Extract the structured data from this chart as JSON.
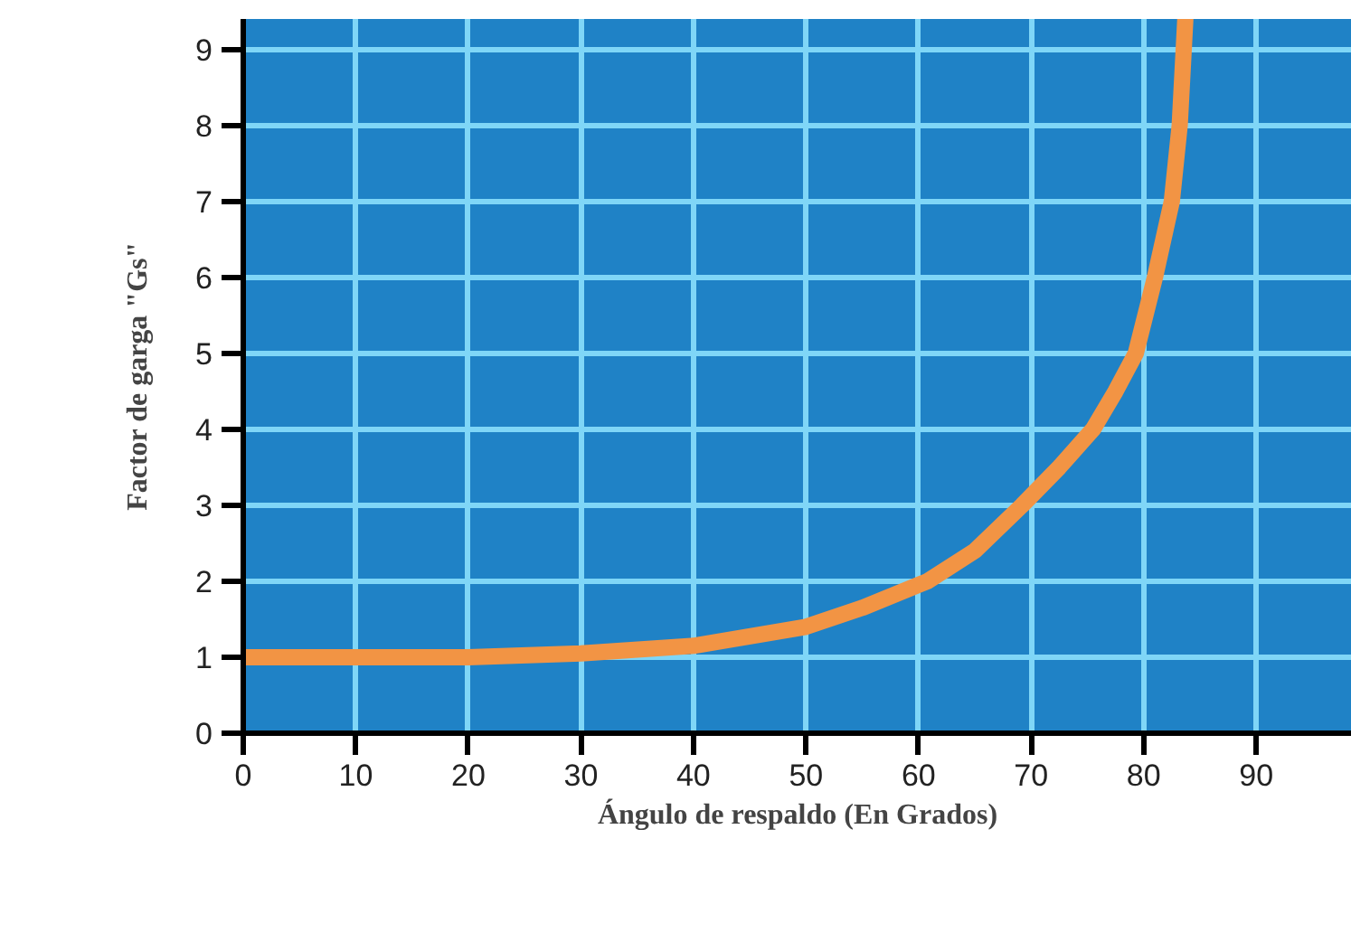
{
  "chart_data": {
    "type": "line",
    "xlabel": "Ángulo de respaldo (En Grados)",
    "ylabel": "Factor de garga \"Gs\"",
    "x": [
      0,
      10,
      20,
      30,
      40,
      50,
      55,
      60.8,
      65,
      69.2,
      72.5,
      75.5,
      77.5,
      79.3,
      81,
      82.5,
      83.2,
      83.7
    ],
    "series": [
      {
        "color": "#f29444",
        "values": [
          1.0,
          1.0,
          1.0,
          1.05,
          1.15,
          1.4,
          1.65,
          2.0,
          2.4,
          3.0,
          3.5,
          4.0,
          4.5,
          5.0,
          6.0,
          7.0,
          8.0,
          9.4
        ]
      }
    ],
    "xlim": [
      0,
      98.5
    ],
    "ylim": [
      0,
      9.4
    ],
    "xticks": [
      0,
      10,
      20,
      30,
      40,
      50,
      60,
      70,
      80,
      90
    ],
    "yticks": [
      0,
      1,
      2,
      3,
      4,
      5,
      6,
      7,
      8,
      9
    ],
    "grid": true,
    "marker": "none",
    "line_style": "solid"
  }
}
